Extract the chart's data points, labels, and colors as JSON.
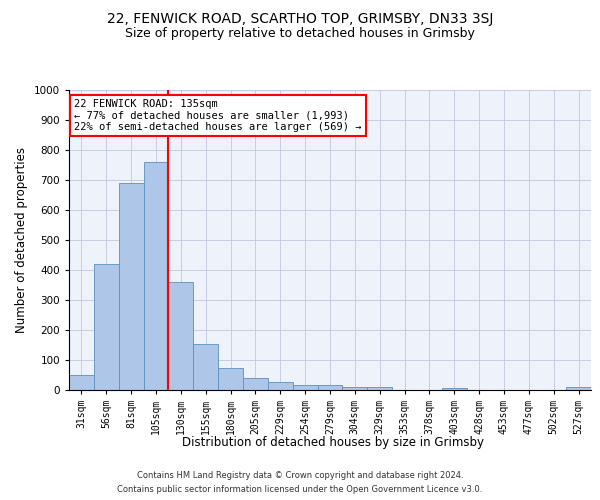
{
  "title_line1": "22, FENWICK ROAD, SCARTHO TOP, GRIMSBY, DN33 3SJ",
  "title_line2": "Size of property relative to detached houses in Grimsby",
  "xlabel": "Distribution of detached houses by size in Grimsby",
  "ylabel": "Number of detached properties",
  "footer_line1": "Contains HM Land Registry data © Crown copyright and database right 2024.",
  "footer_line2": "Contains public sector information licensed under the Open Government Licence v3.0.",
  "bar_labels": [
    "31sqm",
    "56sqm",
    "81sqm",
    "105sqm",
    "130sqm",
    "155sqm",
    "180sqm",
    "205sqm",
    "229sqm",
    "254sqm",
    "279sqm",
    "304sqm",
    "329sqm",
    "353sqm",
    "378sqm",
    "403sqm",
    "428sqm",
    "453sqm",
    "477sqm",
    "502sqm",
    "527sqm"
  ],
  "bar_values": [
    50,
    420,
    690,
    760,
    360,
    155,
    75,
    40,
    27,
    18,
    18,
    10,
    10,
    0,
    0,
    8,
    0,
    0,
    0,
    0,
    10
  ],
  "bar_color": "#aec6e8",
  "bar_edge_color": "#5a8fc0",
  "annotation_text": "22 FENWICK ROAD: 135sqm\n← 77% of detached houses are smaller (1,993)\n22% of semi-detached houses are larger (569) →",
  "vline_color": "red",
  "annotation_box_color": "white",
  "annotation_box_edge": "red",
  "ylim": [
    0,
    1000
  ],
  "yticks": [
    0,
    100,
    200,
    300,
    400,
    500,
    600,
    700,
    800,
    900,
    1000
  ],
  "bg_color": "#eef2fb",
  "grid_color": "#c0c8e0",
  "title_fontsize": 10,
  "subtitle_fontsize": 9,
  "axis_label_fontsize": 8.5,
  "tick_fontsize": 7,
  "footer_fontsize": 6,
  "annotation_fontsize": 7.5
}
